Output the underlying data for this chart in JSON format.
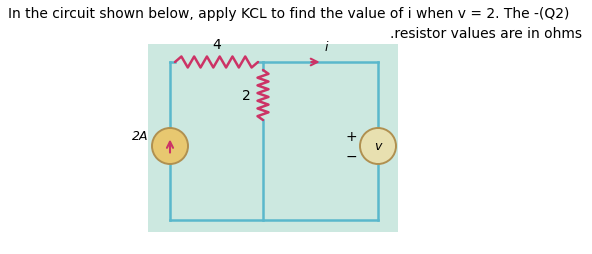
{
  "title_line1": "In the circuit shown below, apply KCL to find the value of i when v = 2. The -(Q2)",
  "title_line2": ".resistor values are in ohms",
  "bg_color": "#cce8e0",
  "wire_color": "#5ab8cc",
  "resistor_color": "#cc3366",
  "arrow_color": "#cc3366",
  "label_4": "4",
  "label_2": "2",
  "label_2A": "2A",
  "label_i": "i",
  "label_v": "v",
  "label_plus": "+",
  "label_minus": "−",
  "current_src_face": "#e8c870",
  "current_src_edge": "#b09050",
  "voltage_src_face": "#e8e0b0",
  "voltage_src_edge": "#b09050"
}
